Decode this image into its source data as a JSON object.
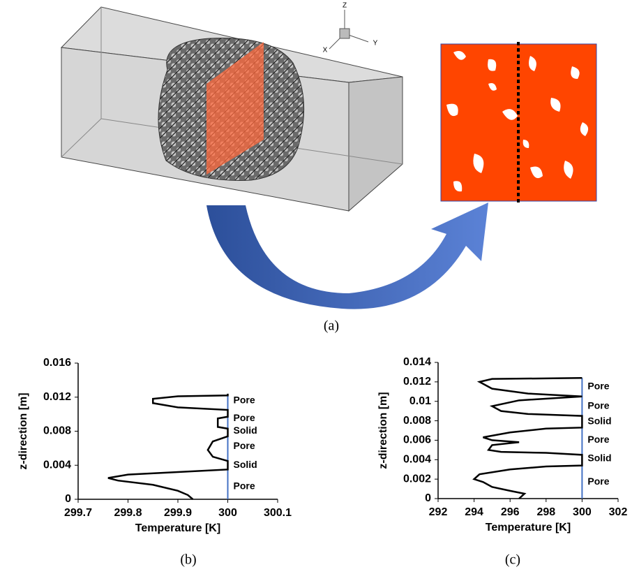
{
  "figure": {
    "panel_labels": [
      "(a)",
      "(b)",
      "(c)"
    ],
    "triad_labels": [
      "Z",
      "X",
      "Y"
    ]
  },
  "chart_data": [
    {
      "type": "line",
      "x_label": "Temperature [K]",
      "y_label": "z-direction [m]",
      "x": [
        299.93,
        299.92,
        299.9,
        299.85,
        299.78,
        299.76,
        299.8,
        299.9,
        300,
        300,
        299.97,
        299.96,
        299.97,
        300,
        300,
        299.98,
        299.98,
        300,
        300,
        299.9,
        299.85,
        299.85,
        299.9,
        300,
        300
      ],
      "values": [
        0,
        0.0005,
        0.001,
        0.0017,
        0.0022,
        0.0025,
        0.0029,
        0.0032,
        0.0035,
        0.0045,
        0.005,
        0.0058,
        0.0068,
        0.0074,
        0.0083,
        0.0085,
        0.0095,
        0.0097,
        0.0105,
        0.0108,
        0.0113,
        0.0118,
        0.0121,
        0.0122,
        0.0124
      ],
      "color": "#000000",
      "reference_x": 300,
      "reference_color": "#4472c4",
      "xlim": [
        299.7,
        300.1
      ],
      "xticks": [
        299.7,
        299.8,
        299.9,
        300,
        300.1
      ],
      "ylim": [
        0,
        0.016
      ],
      "yticks": [
        0,
        0.004,
        0.008,
        0.012,
        0.016
      ],
      "annotations": [
        {
          "text": "Pore",
          "y": 0.0116,
          "color": "#ff0000"
        },
        {
          "text": "Pore",
          "y": 0.0095,
          "color": "#ff0000"
        },
        {
          "text": "Solid",
          "y": 0.008,
          "color": "#000000"
        },
        {
          "text": "Pore",
          "y": 0.0062,
          "color": "#ff0000"
        },
        {
          "text": "Solid",
          "y": 0.004,
          "color": "#000000"
        },
        {
          "text": "Pore",
          "y": 0.0015,
          "color": "#ff0000"
        }
      ]
    },
    {
      "type": "line",
      "x_label": "Temperature [K]",
      "y_label": "z-direction [m]",
      "x": [
        296.5,
        296.8,
        296,
        295,
        294.5,
        294,
        294.3,
        296,
        298,
        300,
        300,
        298,
        295.5,
        294.8,
        295,
        296.5,
        295,
        294.5,
        296,
        298,
        300,
        300,
        297,
        295.5,
        295,
        296.5,
        300,
        297,
        295,
        294.3,
        295,
        300
      ],
      "values": [
        0,
        0.0005,
        0.0008,
        0.0012,
        0.0017,
        0.002,
        0.0025,
        0.003,
        0.0033,
        0.0034,
        0.0045,
        0.0047,
        0.0048,
        0.005,
        0.0055,
        0.0058,
        0.006,
        0.0063,
        0.0068,
        0.0072,
        0.0073,
        0.0085,
        0.0087,
        0.009,
        0.0095,
        0.0101,
        0.0105,
        0.0108,
        0.0113,
        0.012,
        0.0123,
        0.0124
      ],
      "color": "#000000",
      "reference_x": 300,
      "reference_color": "#4472c4",
      "xlim": [
        292,
        302
      ],
      "xticks": [
        292,
        294,
        296,
        298,
        300,
        302
      ],
      "ylim": [
        0,
        0.014
      ],
      "yticks": [
        0,
        0.002,
        0.004,
        0.006,
        0.008,
        0.01,
        0.012,
        0.014
      ],
      "annotations": [
        {
          "text": "Pore",
          "y": 0.0115,
          "color": "#ff0000"
        },
        {
          "text": "Pore",
          "y": 0.0095,
          "color": "#ff0000"
        },
        {
          "text": "Solid",
          "y": 0.0079,
          "color": "#000000"
        },
        {
          "text": "Pore",
          "y": 0.006,
          "color": "#ff0000"
        },
        {
          "text": "Solid",
          "y": 0.0041,
          "color": "#000000"
        },
        {
          "text": "Pore",
          "y": 0.0017,
          "color": "#ff0000"
        }
      ]
    }
  ]
}
